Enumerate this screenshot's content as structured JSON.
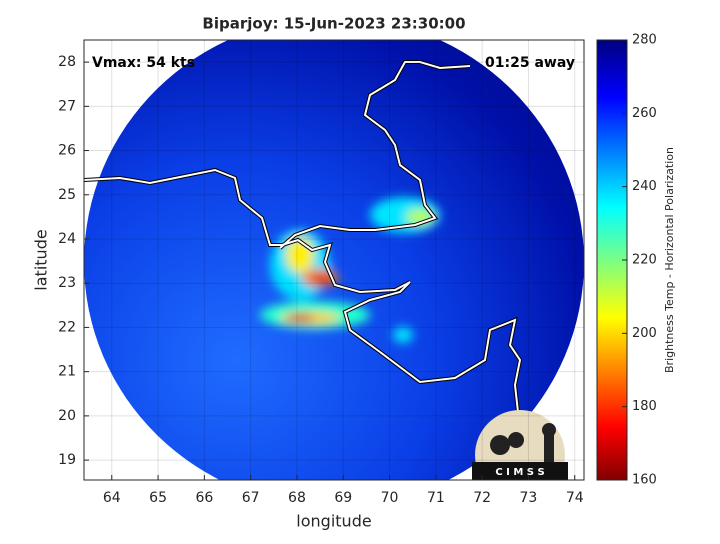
{
  "map": {
    "title": "Biparjoy: 15-Jun-2023 23:30:00",
    "annotations": {
      "vmax": "Vmax: 54 kts",
      "away": "01:25 away",
      "logo": "C I M S S"
    },
    "xlabel": "longitude",
    "ylabel": "latitude",
    "xlim": [
      63.4,
      74.2
    ],
    "xticks": [
      64,
      65,
      66,
      67,
      68,
      69,
      70,
      71,
      72,
      73,
      74
    ],
    "ylim": [
      18.55,
      28.5
    ],
    "yticks": [
      19,
      20,
      21,
      22,
      23,
      24,
      25,
      26,
      27,
      28
    ],
    "colorbar": {
      "label": "Brightness Temp - Horizontal Polarization",
      "lim": [
        160,
        280
      ],
      "ticks": [
        160,
        180,
        200,
        220,
        240,
        260,
        280
      ],
      "colormap": "jet"
    }
  }
}
